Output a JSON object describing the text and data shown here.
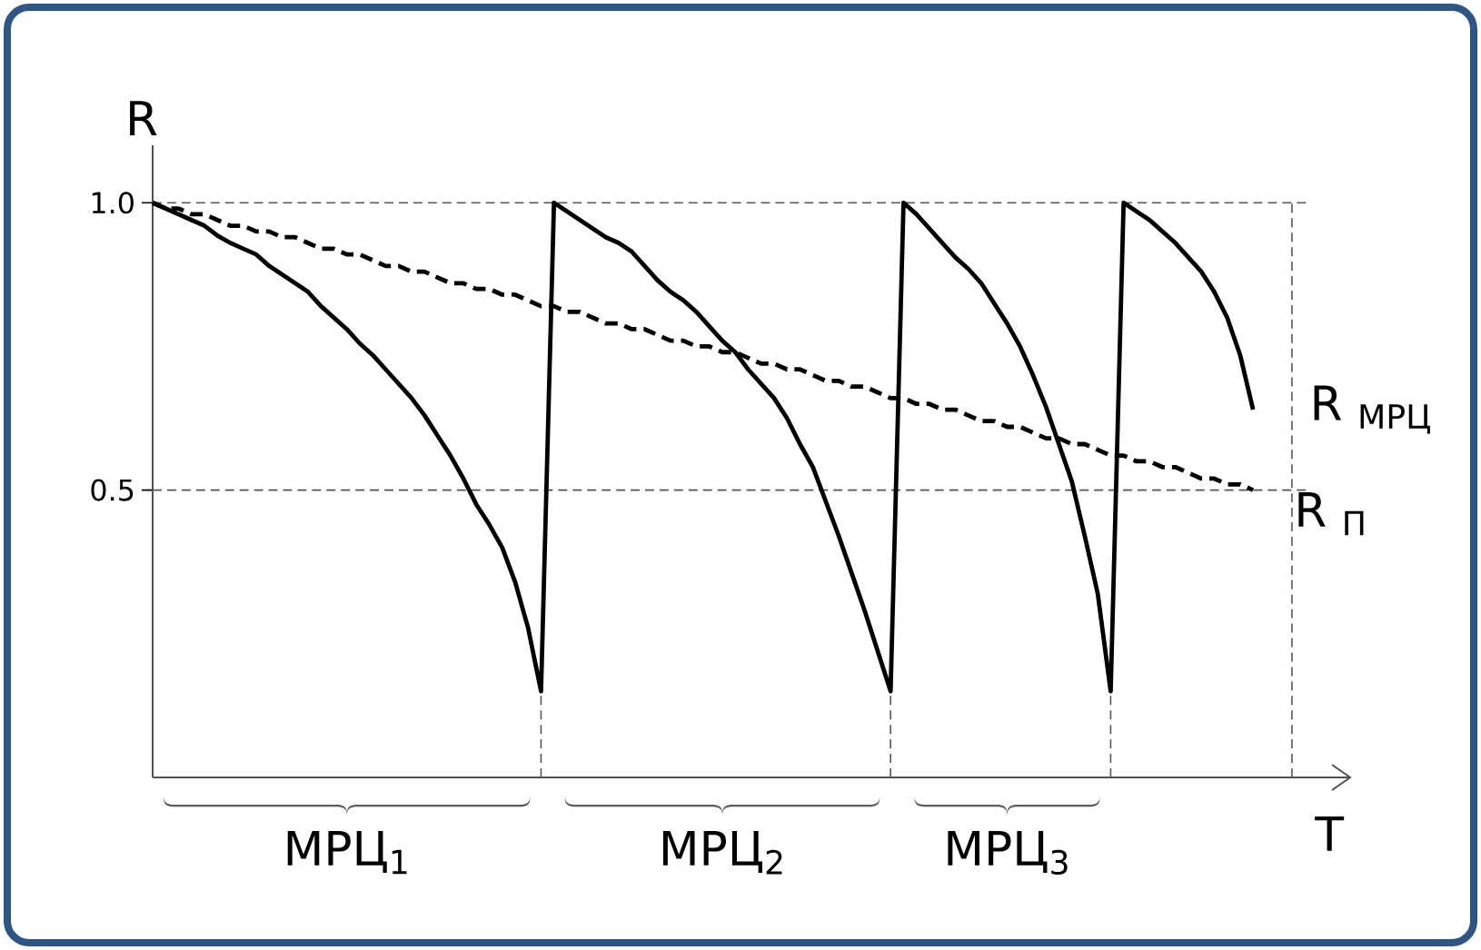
{
  "chart_data": {
    "type": "line",
    "xlabel": "T",
    "ylabel": "R",
    "categories": [
      null,
      null,
      null,
      null,
      null,
      null,
      null,
      null,
      null,
      null,
      null,
      null,
      null,
      null,
      null,
      null,
      null,
      null,
      null,
      null,
      null,
      null,
      null,
      null,
      null,
      null,
      null,
      null,
      null,
      null,
      null,
      null,
      null,
      null,
      null,
      null,
      null,
      null,
      null,
      null,
      null,
      null,
      null,
      null,
      null,
      null,
      null,
      null,
      null,
      null,
      null,
      null,
      null,
      null,
      null,
      null,
      null,
      null,
      null,
      null,
      null,
      null,
      null,
      null,
      null,
      null,
      null,
      null,
      null,
      null,
      null,
      null,
      null,
      null,
      null,
      null,
      null,
      null,
      null,
      null,
      null,
      null,
      null,
      null,
      null,
      null,
      null,
      null,
      null
    ],
    "ylim": [
      0,
      1.1
    ],
    "yticks": [
      {
        "value": 1.0,
        "label": "1.0"
      },
      {
        "value": 0.5,
        "label": "0.5"
      }
    ],
    "tick_labels": "y",
    "series": [
      {
        "color": "#000000",
        "line_style": "solid",
        "values": [
          1.0,
          0.99,
          0.98,
          0.97,
          0.96,
          0.943,
          0.93,
          0.92,
          0.91,
          0.89,
          0.875,
          0.86,
          0.845,
          0.82,
          0.8,
          0.78,
          0.755,
          0.735,
          0.71,
          0.685,
          0.66,
          0.63,
          0.595,
          0.56,
          0.52,
          0.475,
          0.44,
          0.4,
          0.34,
          0.26,
          0.15,
          1.0,
          0.985,
          0.97,
          0.955,
          0.94,
          0.93,
          0.915,
          0.89,
          0.865,
          0.845,
          0.83,
          0.81,
          0.785,
          0.76,
          0.74,
          0.71,
          0.685,
          0.66,
          0.625,
          0.58,
          0.54,
          0.48,
          0.42,
          0.355,
          0.29,
          0.22,
          0.15,
          1.0,
          0.98,
          0.955,
          0.93,
          0.905,
          0.885,
          0.86,
          0.825,
          0.79,
          0.75,
          0.7,
          0.645,
          0.58,
          0.515,
          0.42,
          0.32,
          0.15,
          1.0,
          0.985,
          0.97,
          0.95,
          0.93,
          0.905,
          0.88,
          0.845,
          0.8,
          0.735,
          0.64,
          null,
          null,
          null
        ],
        "errors": [
          null,
          null,
          null,
          null,
          null,
          null,
          null,
          null,
          null,
          null,
          null,
          null,
          null,
          null,
          null,
          null,
          null,
          null,
          null,
          null,
          null,
          null,
          null,
          null,
          null,
          null,
          null,
          null,
          null,
          null,
          [
            0,
            0.15
          ],
          null,
          null,
          null,
          null,
          null,
          null,
          null,
          null,
          null,
          null,
          null,
          null,
          null,
          null,
          null,
          null,
          null,
          null,
          null,
          null,
          null,
          null,
          null,
          null,
          null,
          null,
          [
            0,
            0.15
          ],
          null,
          null,
          null,
          null,
          null,
          null,
          null,
          null,
          null,
          null,
          null,
          null,
          null,
          null,
          null,
          null,
          [
            0,
            0.15
          ],
          null,
          null,
          null,
          null,
          null,
          null,
          null,
          null,
          null,
          null,
          null,
          null,
          null,
          null
        ]
      },
      {
        "color": "#000000",
        "line_style": "dashed",
        "values": [
          1.0,
          0.99,
          0.99,
          0.98,
          0.98,
          0.97,
          0.96,
          0.96,
          0.95,
          0.95,
          0.94,
          0.94,
          0.93,
          0.92,
          0.92,
          0.91,
          0.91,
          0.9,
          0.89,
          0.89,
          0.88,
          0.88,
          0.87,
          0.86,
          0.86,
          0.85,
          0.85,
          0.84,
          0.84,
          0.83,
          0.82,
          0.82,
          0.81,
          0.81,
          0.8,
          0.79,
          0.79,
          0.78,
          0.78,
          0.77,
          0.76,
          0.76,
          0.75,
          0.75,
          0.74,
          0.74,
          0.73,
          0.72,
          0.72,
          0.71,
          0.71,
          0.7,
          0.69,
          0.69,
          0.68,
          0.68,
          0.67,
          0.66,
          0.66,
          0.65,
          0.65,
          0.64,
          0.64,
          0.63,
          0.62,
          0.62,
          0.61,
          0.61,
          0.6,
          0.59,
          0.59,
          0.58,
          0.58,
          0.57,
          0.56,
          0.56,
          0.55,
          0.55,
          0.54,
          0.54,
          0.53,
          0.52,
          0.52,
          0.51,
          0.51,
          0.5,
          null,
          null,
          null
        ]
      }
    ],
    "ref_lines": [
      {
        "axis": "y",
        "value": 1.0,
        "color": "#555555",
        "line_style": "dashed"
      },
      {
        "axis": "y",
        "value": 0.5,
        "label": "R $_{П}$",
        "color": "#555555",
        "line_style": "dashed"
      }
    ],
    "annotations": [
      "МРЦ$_{1}$",
      "МРЦ$_{2}$",
      "МРЦ$_{3}$",
      "R $_{МРЦ}$"
    ]
  }
}
